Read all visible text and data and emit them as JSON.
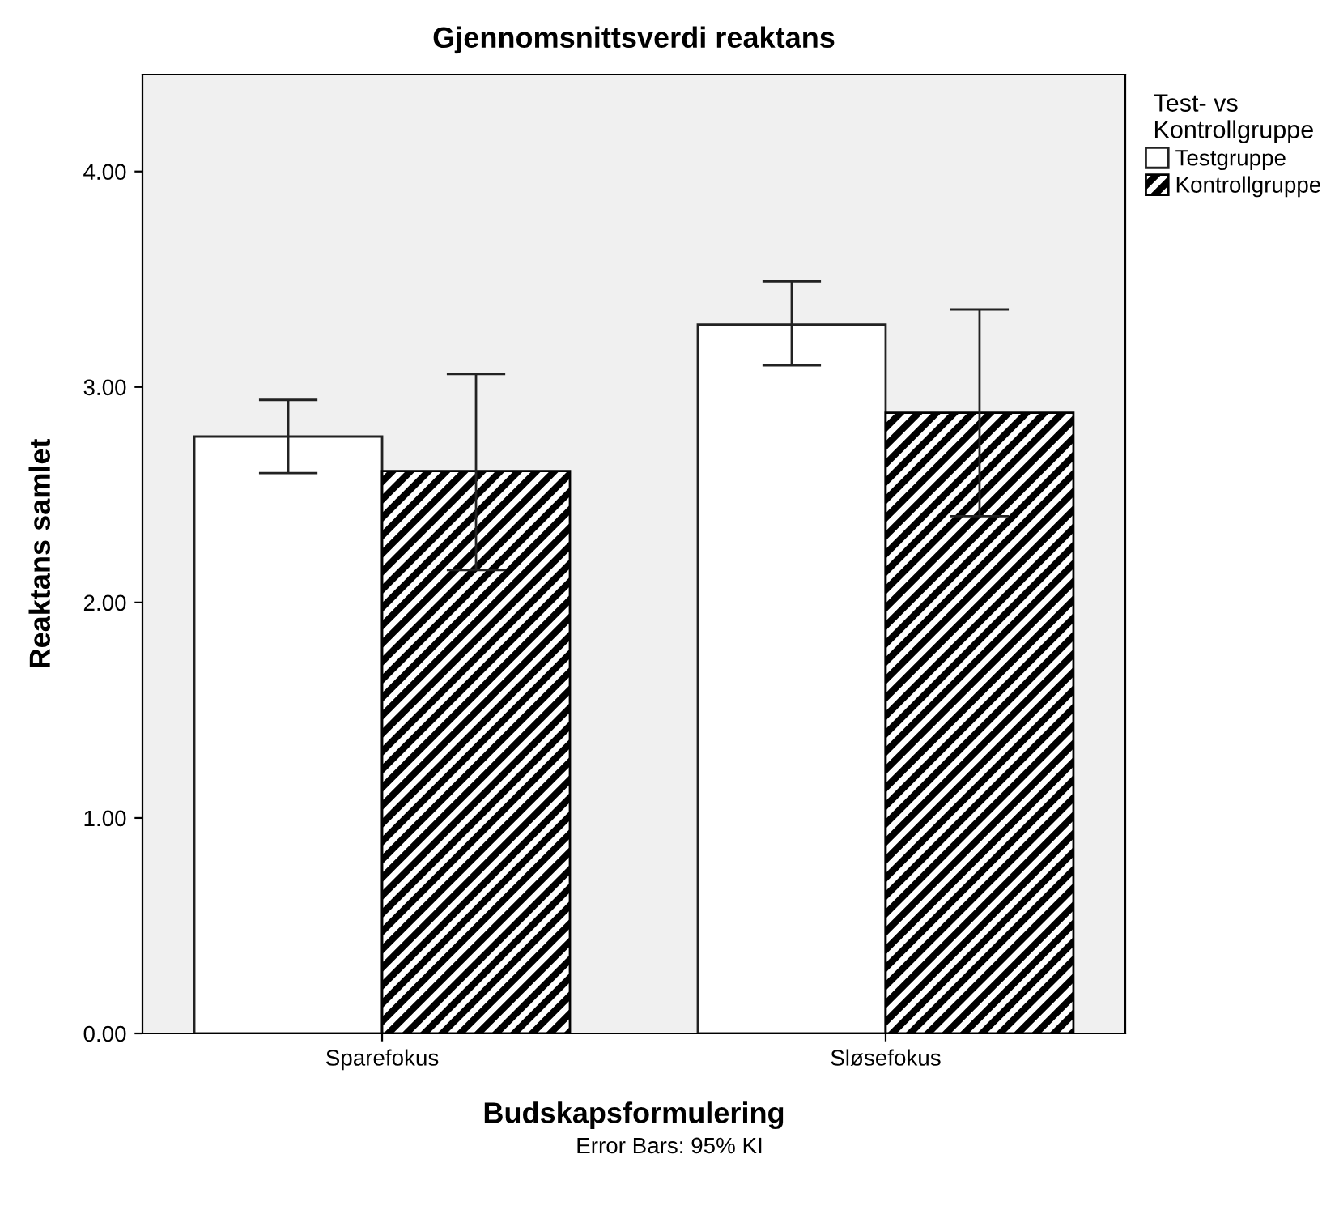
{
  "chart_data": {
    "type": "bar",
    "title": "Gjennomsnittsverdi reaktans",
    "xlabel": "Budskapsformulering",
    "ylabel": "Reaktans samlet",
    "legend_title": "Test- vs\nKontrollgruppe",
    "categories": [
      "Sparefokus",
      "Sløsefokus"
    ],
    "series": [
      {
        "name": "Testgruppe",
        "color": "#ffffff",
        "values": [
          2.77,
          3.29
        ],
        "errors": [
          [
            2.6,
            2.94
          ],
          [
            3.1,
            3.49
          ]
        ]
      },
      {
        "name": "Kontrollgruppe",
        "color": "#000000",
        "values": [
          2.61,
          2.88
        ],
        "errors": [
          [
            2.15,
            3.06
          ],
          [
            2.4,
            3.36
          ]
        ]
      }
    ],
    "ylim": [
      0,
      4.45
    ],
    "yticks": [
      {
        "value": 0,
        "label": "0.00"
      },
      {
        "value": 1,
        "label": "1.00"
      },
      {
        "value": 2,
        "label": "2.00"
      },
      {
        "value": 3,
        "label": "3.00"
      },
      {
        "value": 4,
        "label": "4.00"
      }
    ],
    "grid": false,
    "legend": "top right",
    "annotations": [
      "Error Bars: 95% KI"
    ]
  }
}
